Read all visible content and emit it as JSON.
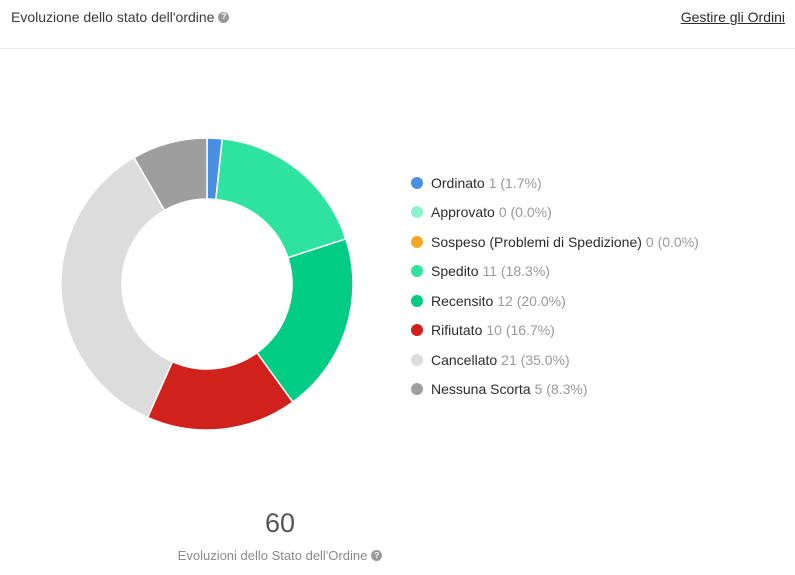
{
  "header": {
    "title": "Evoluzione dello stato dell'ordine",
    "manage_link": "Gestire gli Ordini",
    "help_icon": "question-circle-icon"
  },
  "chart_data": {
    "type": "pie",
    "donut": true,
    "total": 60,
    "total_label": "Evoluzioni dello Stato dell'Ordine",
    "legend_position": "right",
    "categories": [
      "Ordinato",
      "Approvato",
      "Sospeso (Problemi di Spedizione)",
      "Spedito",
      "Recensito",
      "Rifiutato",
      "Cancellato",
      "Nessuna Scorta"
    ],
    "values": [
      1,
      0,
      0,
      11,
      12,
      10,
      21,
      5
    ],
    "labels": [
      "1 (1.7%)",
      "0 (0.0%)",
      "0 (0.0%)",
      "11 (18.3%)",
      "12 (20.0%)",
      "10 (16.7%)",
      "21 (35.0%)",
      "5 (8.3%)"
    ],
    "colors": [
      "#4a90e2",
      "#8cf3cc",
      "#f5a623",
      "#2ee39f",
      "#00cc84",
      "#d0211c",
      "#dcdcdc",
      "#9e9e9e"
    ]
  }
}
